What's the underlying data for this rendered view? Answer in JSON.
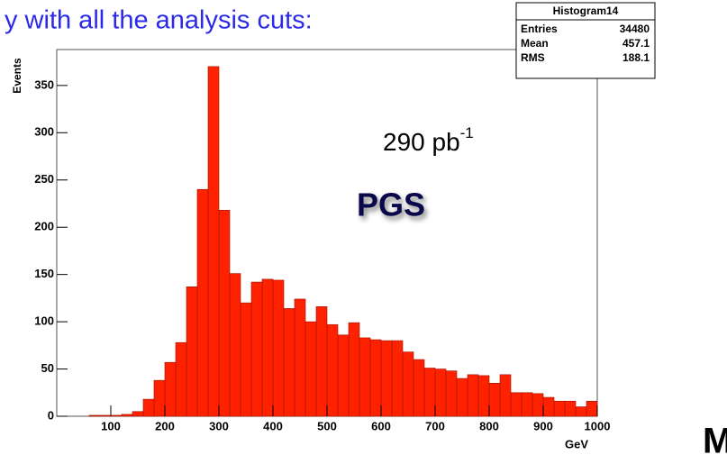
{
  "chart_data": {
    "type": "histogram",
    "title": "y with all the analysis cuts:",
    "bins": [
      0,
      20,
      40,
      60,
      80,
      100,
      120,
      140,
      160,
      180,
      200,
      220,
      240,
      260,
      280,
      300,
      320,
      340,
      360,
      380,
      400,
      420,
      440,
      460,
      480,
      500,
      520,
      540,
      560,
      580,
      600,
      620,
      640,
      660,
      680,
      700,
      720,
      740,
      760,
      780,
      800,
      820,
      840,
      860,
      880,
      900,
      920,
      940,
      960,
      980,
      1000
    ],
    "values": [
      0,
      0,
      0,
      1,
      1,
      1,
      2,
      5,
      18,
      38,
      57,
      78,
      137,
      240,
      370,
      218,
      151,
      120,
      142,
      145,
      144,
      114,
      124,
      100,
      116,
      97,
      86,
      99,
      83,
      81,
      80,
      80,
      68,
      60,
      51,
      50,
      48,
      40,
      44,
      43,
      35,
      44,
      25,
      25,
      24,
      20,
      16,
      16,
      10,
      16
    ],
    "color": "#ff2200",
    "xlim": [
      0,
      1000
    ],
    "ylim": [
      0,
      388
    ],
    "xticks": [
      100,
      200,
      300,
      400,
      500,
      600,
      700,
      800,
      900,
      1000
    ],
    "yticks": [
      0,
      50,
      100,
      150,
      200,
      250,
      300,
      350
    ],
    "xlabel": "GeV",
    "ylabel": "Events",
    "stats": {
      "title": "Histogram14",
      "rows": [
        [
          "Entries",
          34480
        ],
        [
          "Mean",
          457.1
        ],
        [
          "RMS",
          188.1
        ]
      ]
    },
    "annotations": {
      "luminosity": "290 pb",
      "luminosity_exponent": "-1",
      "generator": "PGS",
      "corner_letter": "M"
    }
  }
}
